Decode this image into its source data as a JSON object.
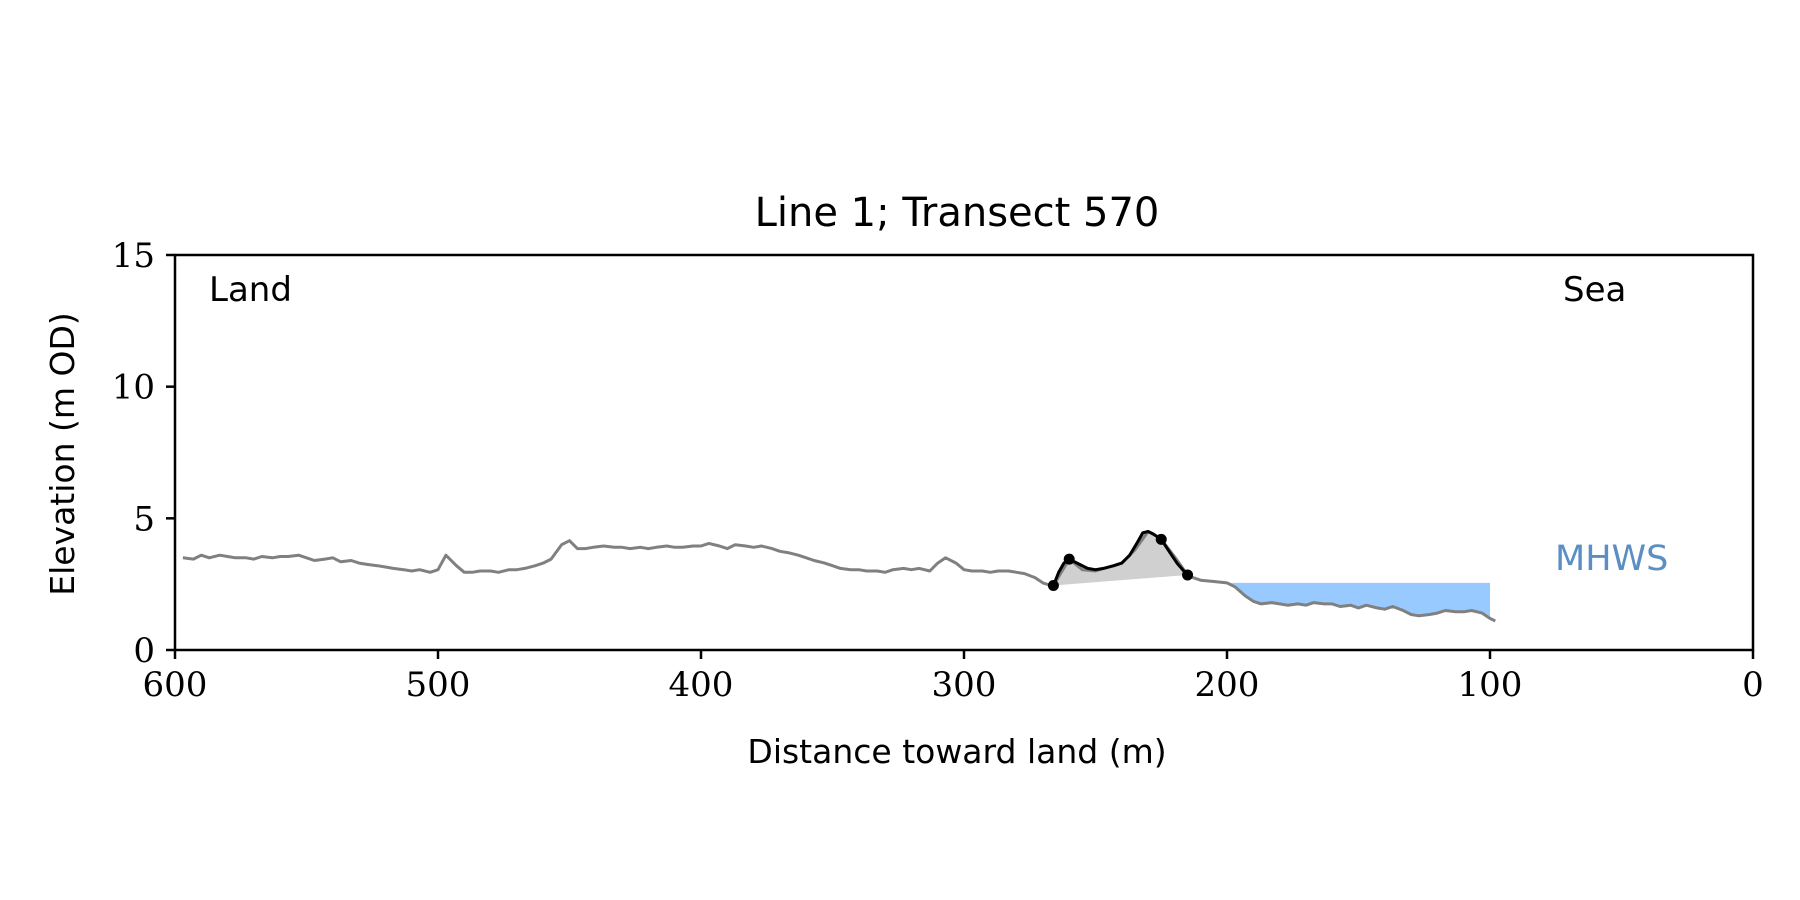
{
  "chart_data": {
    "type": "line",
    "title": "Line 1; Transect 570",
    "xlabel": "Distance toward land (m)",
    "ylabel": "Elevation (m OD)",
    "xlim": [
      600,
      0
    ],
    "ylim": [
      0,
      15
    ],
    "x_inverted": true,
    "grid": false,
    "xticks": [
      600,
      500,
      400,
      300,
      200,
      100,
      0
    ],
    "yticks": [
      0,
      5,
      10,
      15
    ],
    "annotations": {
      "land": "Land",
      "sea": "Sea",
      "mhws": "MHWS"
    },
    "mhws_level": 2.55,
    "mhws_extent": [
      200,
      100
    ],
    "colors": {
      "profile": "#808080",
      "dune": "#000000",
      "dune_fill": "#d0d0d0",
      "mhws_fill": "#99caff",
      "mhws_text": "#5b8fc4"
    },
    "series": [
      {
        "role": "profile",
        "x": [
          597,
          593,
          590,
          587,
          583,
          580,
          577,
          573,
          570,
          567,
          563,
          560,
          557,
          553,
          550,
          547,
          543,
          540,
          537,
          533,
          530,
          527,
          523,
          520,
          517,
          513,
          510,
          507,
          503,
          500,
          497,
          493,
          490,
          487,
          484,
          480,
          477,
          473,
          470,
          467,
          463,
          460,
          457,
          453,
          450,
          447,
          444,
          441,
          437,
          433,
          430,
          427,
          423,
          420,
          417,
          413,
          410,
          407,
          403,
          400,
          397,
          393,
          390,
          387,
          383,
          380,
          377,
          373,
          370,
          367,
          363,
          360,
          357,
          353,
          350,
          347,
          343,
          340,
          337,
          333,
          330,
          327,
          323,
          320,
          317,
          313,
          310,
          307,
          303,
          300,
          297,
          293,
          290,
          287,
          283,
          280,
          277,
          273,
          270,
          267,
          266,
          260,
          255,
          250,
          245,
          240,
          235,
          230,
          228,
          225,
          220,
          215,
          213,
          210,
          205,
          200,
          197,
          193,
          190,
          187,
          183,
          180,
          177,
          173,
          170,
          167,
          163,
          160,
          157,
          153,
          150,
          147,
          143,
          140,
          137,
          133,
          130,
          127,
          123,
          120,
          117,
          113,
          110,
          107,
          103,
          100,
          98
        ],
        "y": [
          3.5,
          3.45,
          3.6,
          3.5,
          3.6,
          3.55,
          3.5,
          3.5,
          3.45,
          3.55,
          3.5,
          3.55,
          3.55,
          3.6,
          3.5,
          3.4,
          3.45,
          3.5,
          3.35,
          3.4,
          3.3,
          3.25,
          3.2,
          3.15,
          3.1,
          3.05,
          3.0,
          3.05,
          2.95,
          3.05,
          3.6,
          3.2,
          2.95,
          2.95,
          3.0,
          3.0,
          2.95,
          3.05,
          3.05,
          3.1,
          3.2,
          3.3,
          3.45,
          4.0,
          4.15,
          3.85,
          3.85,
          3.9,
          3.95,
          3.9,
          3.9,
          3.85,
          3.9,
          3.85,
          3.9,
          3.95,
          3.9,
          3.9,
          3.95,
          3.95,
          4.05,
          3.95,
          3.85,
          4.0,
          3.95,
          3.9,
          3.95,
          3.85,
          3.75,
          3.7,
          3.6,
          3.5,
          3.4,
          3.3,
          3.2,
          3.1,
          3.05,
          3.05,
          3.0,
          3.0,
          2.95,
          3.05,
          3.1,
          3.05,
          3.1,
          3.0,
          3.3,
          3.5,
          3.3,
          3.05,
          3.0,
          3.0,
          2.95,
          3.0,
          3.0,
          2.95,
          2.9,
          2.75,
          2.55,
          2.45,
          2.45,
          3.45,
          3.05,
          3.0,
          3.15,
          3.3,
          3.8,
          4.5,
          4.4,
          4.2,
          3.55,
          2.85,
          2.75,
          2.65,
          2.6,
          2.55,
          2.4,
          2.05,
          1.85,
          1.75,
          1.8,
          1.75,
          1.7,
          1.75,
          1.7,
          1.8,
          1.75,
          1.75,
          1.65,
          1.7,
          1.6,
          1.7,
          1.6,
          1.55,
          1.65,
          1.5,
          1.35,
          1.3,
          1.35,
          1.4,
          1.5,
          1.45,
          1.45,
          1.5,
          1.4,
          1.2,
          1.1
        ]
      },
      {
        "role": "dune",
        "x": [
          266,
          264,
          262,
          260,
          257,
          253,
          250,
          247,
          243,
          240,
          237,
          234,
          232,
          230,
          228,
          225,
          222,
          219,
          216,
          215
        ],
        "y": [
          2.45,
          2.95,
          3.3,
          3.45,
          3.3,
          3.1,
          3.05,
          3.1,
          3.2,
          3.3,
          3.6,
          4.1,
          4.45,
          4.5,
          4.4,
          4.2,
          3.75,
          3.3,
          2.95,
          2.85
        ]
      }
    ],
    "markers": {
      "x": [
        266,
        260,
        225,
        215
      ],
      "y": [
        2.45,
        3.45,
        4.2,
        2.85
      ]
    },
    "dune_base": {
      "x": [
        266,
        215
      ],
      "y": [
        2.45,
        2.85
      ]
    }
  }
}
